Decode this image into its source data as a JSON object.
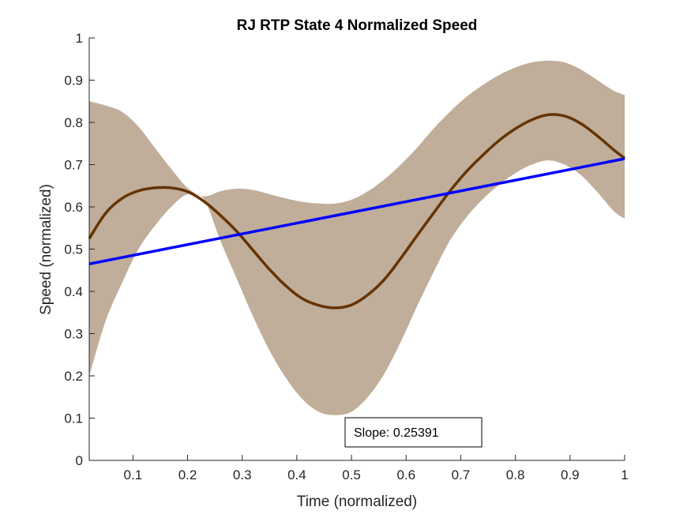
{
  "chart_data": {
    "type": "line",
    "title": "RJ  RTP State 4 Normalized Speed",
    "xlabel": "Time (normalized)",
    "ylabel": "Speed (normalized)",
    "xlim": [
      0.02,
      1.0
    ],
    "ylim": [
      0,
      1
    ],
    "xticks": [
      0.1,
      0.2,
      0.3,
      0.4,
      0.5,
      0.6,
      0.7,
      0.8,
      0.9,
      1
    ],
    "xtick_labels": [
      "0.1",
      "0.2",
      "0.3",
      "0.4",
      "0.5",
      "0.6",
      "0.7",
      "0.8",
      "0.9",
      "1"
    ],
    "yticks": [
      0,
      0.1,
      0.2,
      0.3,
      0.4,
      0.5,
      0.6,
      0.7,
      0.8,
      0.9,
      1
    ],
    "ytick_labels": [
      "0",
      "0.1",
      "0.2",
      "0.3",
      "0.4",
      "0.5",
      "0.6",
      "0.7",
      "0.8",
      "0.9",
      "1"
    ],
    "grid": false,
    "colors": {
      "mean": "#663300",
      "band": "#c0ae9a",
      "fit": "#0000ff"
    },
    "series": [
      {
        "role": "mean",
        "x": [
          0.02,
          0.05,
          0.08,
          0.11,
          0.14,
          0.17,
          0.2,
          0.23,
          0.26,
          0.29,
          0.32,
          0.35,
          0.38,
          0.41,
          0.44,
          0.47,
          0.5,
          0.53,
          0.56,
          0.59,
          0.62,
          0.65,
          0.68,
          0.71,
          0.74,
          0.77,
          0.8,
          0.83,
          0.86,
          0.89,
          0.92,
          0.95,
          0.98,
          1.0
        ],
        "y": [
          0.525,
          0.585,
          0.62,
          0.638,
          0.645,
          0.645,
          0.636,
          0.613,
          0.58,
          0.542,
          0.497,
          0.452,
          0.413,
          0.383,
          0.367,
          0.361,
          0.368,
          0.392,
          0.428,
          0.478,
          0.532,
          0.585,
          0.637,
          0.683,
          0.722,
          0.757,
          0.785,
          0.806,
          0.818,
          0.815,
          0.797,
          0.768,
          0.735,
          0.715
        ]
      },
      {
        "role": "upper-bound",
        "x": [
          0.02,
          0.05,
          0.08,
          0.11,
          0.14,
          0.17,
          0.2,
          0.23,
          0.26,
          0.29,
          0.32,
          0.35,
          0.38,
          0.41,
          0.44,
          0.47,
          0.5,
          0.53,
          0.56,
          0.59,
          0.62,
          0.65,
          0.68,
          0.71,
          0.74,
          0.77,
          0.8,
          0.83,
          0.86,
          0.89,
          0.92,
          0.95,
          0.98,
          1.0
        ],
        "y": [
          0.85,
          0.84,
          0.825,
          0.79,
          0.74,
          0.69,
          0.645,
          0.625,
          0.637,
          0.643,
          0.64,
          0.63,
          0.62,
          0.612,
          0.608,
          0.608,
          0.617,
          0.637,
          0.665,
          0.7,
          0.74,
          0.785,
          0.825,
          0.86,
          0.888,
          0.912,
          0.93,
          0.942,
          0.946,
          0.942,
          0.925,
          0.9,
          0.875,
          0.865
        ]
      },
      {
        "role": "lower-bound",
        "x": [
          0.02,
          0.05,
          0.08,
          0.11,
          0.14,
          0.17,
          0.2,
          0.23,
          0.26,
          0.29,
          0.32,
          0.35,
          0.38,
          0.41,
          0.44,
          0.47,
          0.5,
          0.53,
          0.56,
          0.59,
          0.62,
          0.65,
          0.68,
          0.71,
          0.74,
          0.77,
          0.8,
          0.83,
          0.86,
          0.89,
          0.92,
          0.95,
          0.98,
          1.0
        ],
        "y": [
          0.2,
          0.33,
          0.42,
          0.5,
          0.555,
          0.6,
          0.63,
          0.618,
          0.52,
          0.43,
          0.34,
          0.26,
          0.195,
          0.145,
          0.115,
          0.107,
          0.115,
          0.15,
          0.205,
          0.28,
          0.365,
          0.445,
          0.52,
          0.575,
          0.618,
          0.652,
          0.68,
          0.7,
          0.71,
          0.7,
          0.675,
          0.635,
          0.59,
          0.572
        ]
      },
      {
        "role": "linear-fit",
        "x": [
          0.02,
          1.0
        ],
        "y": [
          0.465,
          0.714
        ]
      }
    ],
    "annotations": [
      {
        "text": "Slope: 0.25391"
      }
    ]
  }
}
